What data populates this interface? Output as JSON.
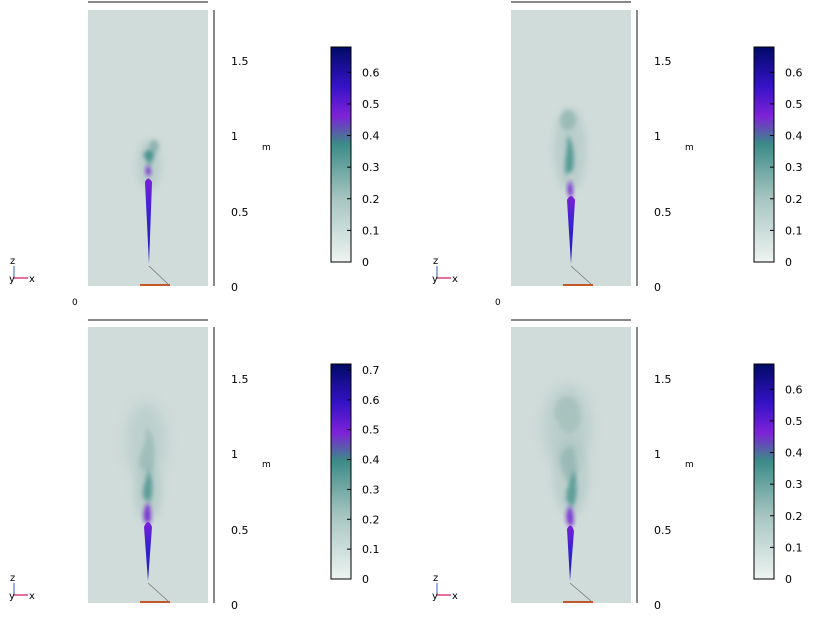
{
  "panels": [
    {
      "axis_unit": "m",
      "axis_ticks": [
        "0",
        "0.5",
        "1",
        "1.5"
      ],
      "colorbar_ticks": [
        "0",
        "0.1",
        "0.2",
        "0.3",
        "0.4",
        "0.5",
        "0.6"
      ],
      "colorbar_max": 0.68,
      "triad": {
        "z": "z",
        "y": "y",
        "x": "x"
      },
      "footer_fragment": "0"
    },
    {
      "axis_unit": "m",
      "axis_ticks": [
        "0",
        "0.5",
        "1",
        "1.5"
      ],
      "colorbar_ticks": [
        "0",
        "0.1",
        "0.2",
        "0.3",
        "0.4",
        "0.5",
        "0.6"
      ],
      "colorbar_max": 0.68,
      "triad": {
        "z": "z",
        "y": "y",
        "x": "x"
      },
      "footer_fragment": "0"
    },
    {
      "axis_unit": "m",
      "axis_ticks": [
        "0",
        "0.5",
        "1",
        "1.5"
      ],
      "colorbar_ticks": [
        "0",
        "0.1",
        "0.2",
        "0.3",
        "0.4",
        "0.5",
        "0.6",
        "0.7"
      ],
      "colorbar_max": 0.72,
      "triad": {
        "z": "z",
        "y": "y",
        "x": "x"
      }
    },
    {
      "axis_unit": "m",
      "axis_ticks": [
        "0",
        "0.5",
        "1",
        "1.5"
      ],
      "colorbar_ticks": [
        "0",
        "0.1",
        "0.2",
        "0.3",
        "0.4",
        "0.5",
        "0.6"
      ],
      "colorbar_max": 0.68,
      "triad": {
        "z": "z",
        "y": "y",
        "x": "x"
      }
    }
  ],
  "colors": {
    "background": "#d0dcda",
    "colormap": [
      "#e6eeec",
      "#9fbfbc",
      "#3a8a86",
      "#7a1fd8",
      "#3a10c8",
      "#000a66"
    ],
    "plume_light": "#a9c3c0",
    "plume_teal": "#3f8e89",
    "plume_purple": "#6a16d0",
    "plume_blue": "#2222c6",
    "nozzle": "#c0582a",
    "axis": "#888888",
    "triad_x": "#d01060",
    "triad_z": "#3060c0"
  }
}
